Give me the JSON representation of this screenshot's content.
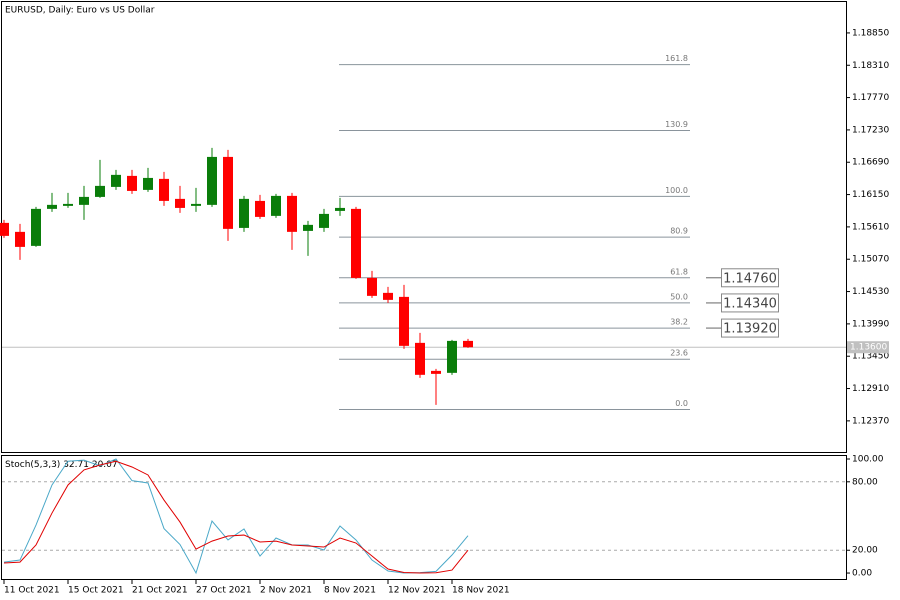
{
  "chart_data": [
    {
      "type": "candlestick",
      "title": "EURUSD, Daily:  Euro vs US Dollar",
      "categories": [
        "11 Oct 2021",
        null,
        null,
        null,
        "15 Oct 2021",
        null,
        null,
        null,
        "21 Oct 2021",
        null,
        null,
        null,
        "27 Oct 2021",
        null,
        null,
        null,
        "2 Nov 2021",
        null,
        null,
        null,
        "8 Nov 2021",
        null,
        null,
        null,
        "12 Nov 2021",
        null,
        null,
        null,
        "18 Nov 2021",
        null
      ],
      "open": [
        1.15677,
        1.15527,
        1.15293,
        1.15911,
        1.15961,
        1.15978,
        1.16111,
        1.16278,
        1.16462,
        1.16228,
        1.16412,
        1.16078,
        1.15961,
        1.15978,
        1.16779,
        1.15593,
        1.16044,
        1.15794,
        1.16128,
        1.15543,
        1.15593,
        1.15877,
        1.15911,
        1.14758,
        1.14508,
        1.14441,
        1.13673,
        1.13205,
        1.13172,
        1.13706
      ],
      "high": [
        1.15727,
        1.1566,
        1.15944,
        1.16178,
        1.16178,
        1.16295,
        1.16729,
        1.16562,
        1.16562,
        1.16595,
        1.16529,
        1.16295,
        1.16261,
        1.16929,
        1.16896,
        1.16128,
        1.16145,
        1.16161,
        1.16178,
        1.1571,
        1.15911,
        1.16094,
        1.15944,
        1.14875,
        1.14608,
        1.14642,
        1.1384,
        1.13238,
        1.13723,
        1.13739
      ],
      "low": [
        1.15426,
        1.15059,
        1.15276,
        1.15861,
        1.15927,
        1.15727,
        1.16094,
        1.16228,
        1.16161,
        1.16195,
        1.15961,
        1.15844,
        1.15861,
        1.15944,
        1.15376,
        1.15527,
        1.15744,
        1.1576,
        1.15226,
        1.15126,
        1.15527,
        1.15794,
        1.14741,
        1.14424,
        1.14341,
        1.13573,
        1.13088,
        1.12638,
        1.13139,
        1.13589
      ],
      "close": [
        1.1546,
        1.15276,
        1.15911,
        1.15978,
        1.15994,
        1.16111,
        1.16295,
        1.16479,
        1.16211,
        1.16428,
        1.16044,
        1.15927,
        1.15994,
        1.16779,
        1.15577,
        1.16078,
        1.15777,
        1.16128,
        1.15527,
        1.15644,
        1.15827,
        1.15927,
        1.14758,
        1.14458,
        1.14391,
        1.13623,
        1.13139,
        1.13155,
        1.13706,
        1.136
      ],
      "up_color": "#0a7d0a",
      "down_color": "#ff0000",
      "ylim": [
        1.1185,
        1.194
      ],
      "yticks": [
        {
          "value": 1.1885,
          "label": "1.18850"
        },
        {
          "value": 1.1831,
          "label": "1.18310"
        },
        {
          "value": 1.1777,
          "label": "1.17770"
        },
        {
          "value": 1.1723,
          "label": "1.17230"
        },
        {
          "value": 1.1669,
          "label": "1.16690"
        },
        {
          "value": 1.1615,
          "label": "1.16150"
        },
        {
          "value": 1.1561,
          "label": "1.15610"
        },
        {
          "value": 1.1507,
          "label": "1.15070"
        },
        {
          "value": 1.1453,
          "label": "1.14530"
        },
        {
          "value": 1.1399,
          "label": "1.13990"
        },
        {
          "value": 1.1345,
          "label": "1.13450"
        },
        {
          "value": 1.1291,
          "label": "1.12910"
        },
        {
          "value": 1.1237,
          "label": "1.12370"
        }
      ],
      "current_price": {
        "value": 1.136,
        "label": "1.13600"
      },
      "fibonacci": [
        {
          "value": 1.1832,
          "label": "161.8"
        },
        {
          "value": 1.1722,
          "label": "130.9"
        },
        {
          "value": 1.1612,
          "label": "100.0"
        },
        {
          "value": 1.1544,
          "label": "80.9"
        },
        {
          "value": 1.1476,
          "label": "61.8"
        },
        {
          "value": 1.1434,
          "label": "50.0"
        },
        {
          "value": 1.1392,
          "label": "38.2"
        },
        {
          "value": 1.134,
          "label": "23.6"
        },
        {
          "value": 1.1256,
          "label": "0.0"
        }
      ],
      "price_levels": [
        {
          "value": 1.1476,
          "label": "1.14760"
        },
        {
          "value": 1.1434,
          "label": "1.14340"
        },
        {
          "value": 1.1392,
          "label": "1.13920"
        }
      ],
      "grid": false
    },
    {
      "type": "line",
      "title": "Stoch(5,3,3)",
      "series": [
        {
          "color": "#4aa8c8",
          "values": [
            9.6,
            11.4,
            42.1,
            77.2,
            98,
            99,
            94,
            100,
            81,
            79,
            39,
            25,
            0,
            45.6,
            29,
            38.6,
            14.9,
            30.7,
            24.6,
            24.6,
            20.2,
            41.2,
            29,
            11.4,
            1.8,
            0,
            0.4,
            1.5,
            15.8,
            32.71
          ]
        },
        {
          "color": "#e00000",
          "values": [
            8.8,
            9.6,
            24.6,
            52.6,
            77.2,
            90.4,
            94.7,
            98,
            93,
            86,
            64,
            44.7,
            21,
            28,
            32.5,
            33.3,
            27.2,
            28,
            24.6,
            23.7,
            22.8,
            30.7,
            26.3,
            14.9,
            3.5,
            0.5,
            0,
            0.3,
            2.6,
            20.07
          ]
        }
      ],
      "ylim": [
        -6.1,
        103.5
      ],
      "yticks": [
        {
          "value": 100,
          "label": "100.00"
        },
        {
          "value": 80,
          "label": "80.00"
        },
        {
          "value": 20,
          "label": "20.00"
        },
        {
          "value": 0,
          "label": "0.00"
        }
      ],
      "levels": [
        80,
        20
      ]
    }
  ]
}
